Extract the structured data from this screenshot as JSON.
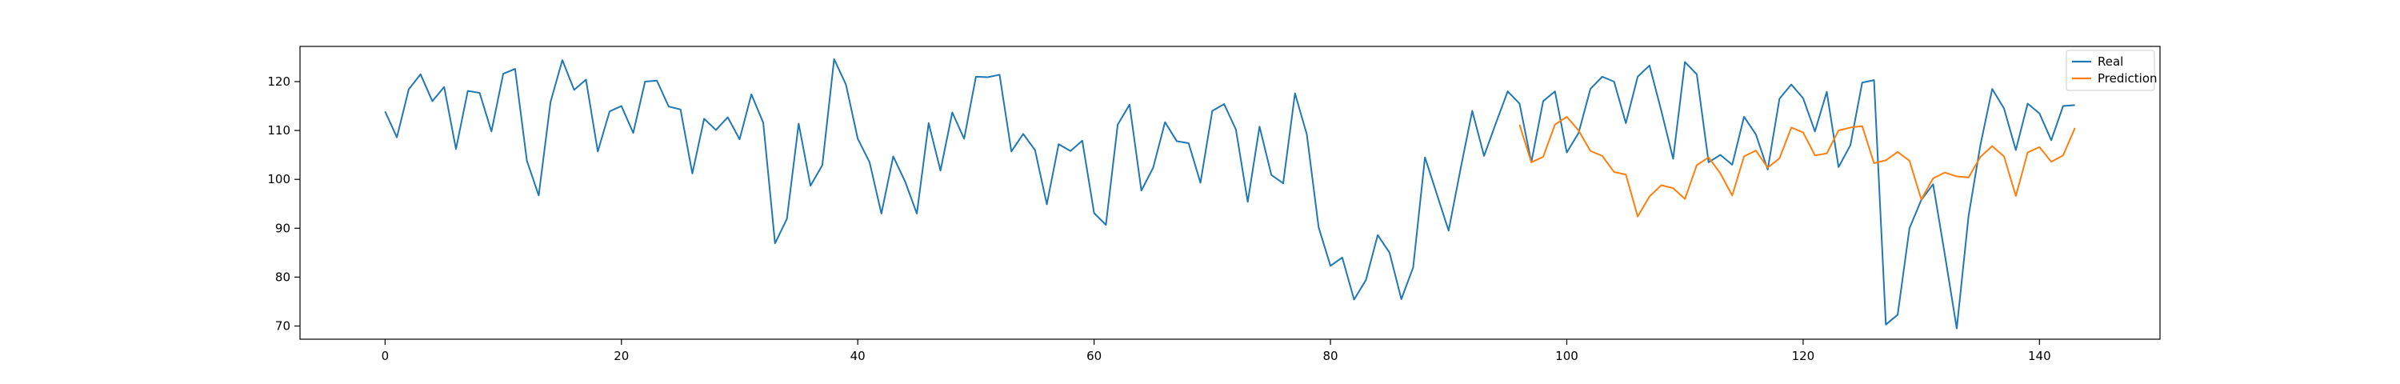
{
  "chart_data": {
    "type": "line",
    "title": "",
    "xlabel": "",
    "ylabel": "",
    "xlim": [
      -7.2,
      150.2
    ],
    "ylim": [
      67.3,
      127.2
    ],
    "x_ticks": [
      0,
      20,
      40,
      60,
      80,
      100,
      120,
      140
    ],
    "y_ticks": [
      70,
      80,
      90,
      100,
      110,
      120
    ],
    "grid": false,
    "legend_position": "top-right",
    "series": [
      {
        "name": "Real",
        "color": "#1f77b4",
        "x_start": 0,
        "values": [
          113.9,
          108.6,
          118.4,
          121.5,
          116.0,
          118.9,
          106.2,
          118.1,
          117.7,
          109.8,
          121.6,
          122.6,
          103.8,
          96.7,
          115.8,
          124.4,
          118.3,
          120.4,
          105.7,
          113.9,
          115.0,
          109.5,
          120.0,
          120.2,
          114.9,
          114.3,
          101.2,
          112.4,
          110.1,
          112.7,
          108.2,
          117.4,
          111.6,
          86.9,
          91.9,
          111.4,
          98.7,
          102.9,
          124.6,
          119.4,
          108.3,
          103.5,
          93.0,
          104.7,
          99.6,
          93.0,
          111.5,
          101.8,
          113.7,
          108.3,
          121.0,
          120.9,
          121.4,
          105.7,
          109.3,
          106.0,
          94.9,
          107.2,
          105.8,
          107.9,
          93.1,
          90.7,
          111.2,
          115.3,
          97.7,
          102.4,
          111.7,
          107.8,
          107.4,
          99.3,
          114.0,
          115.4,
          110.2,
          95.4,
          110.8,
          100.9,
          99.2,
          117.6,
          109.2,
          90.2,
          82.3,
          84.0,
          75.4,
          79.4,
          88.6,
          85.0,
          75.5,
          82.0,
          104.5,
          97.0,
          89.5,
          102.0,
          114.0,
          104.8,
          111.5,
          118.0,
          115.5,
          103.5,
          116.0,
          118.0,
          105.5,
          109.5,
          118.5,
          121.0,
          120.0,
          111.5,
          121.0,
          123.3,
          114.0,
          104.2,
          124.0,
          121.5,
          103.5,
          105.0,
          103.0,
          112.8,
          109.2,
          102.0,
          116.5,
          119.4,
          116.6,
          109.8,
          117.9,
          102.5,
          107.0,
          119.8,
          120.3,
          70.3,
          72.3,
          90.0,
          95.8,
          99.0,
          84.5,
          69.5,
          92.5,
          107.0,
          118.5,
          114.5,
          106.0,
          115.5,
          113.5,
          108.0,
          115.0,
          115.2
        ]
      },
      {
        "name": "Prediction",
        "color": "#ff7f0e",
        "x_start": 96,
        "values": [
          111.2,
          103.5,
          104.6,
          111.2,
          112.8,
          110.0,
          105.8,
          104.8,
          101.5,
          101.0,
          92.4,
          96.5,
          98.8,
          98.2,
          96.0,
          102.9,
          104.5,
          101.2,
          96.7,
          104.7,
          105.9,
          102.4,
          104.3,
          110.6,
          109.6,
          104.9,
          105.3,
          110.0,
          110.6,
          110.9,
          103.3,
          103.9,
          105.6,
          103.8,
          95.9,
          100.2,
          101.4,
          100.6,
          100.4,
          104.6,
          106.8,
          104.7,
          96.6,
          105.5,
          106.6,
          103.6,
          104.9,
          110.5
        ]
      }
    ]
  }
}
